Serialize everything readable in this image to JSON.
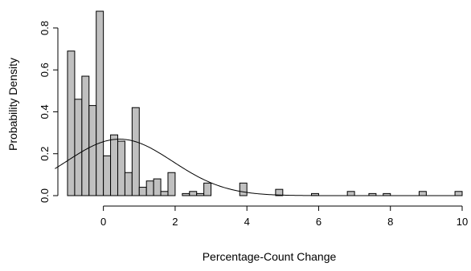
{
  "chart_data": {
    "type": "bar",
    "subtype": "histogram-with-density-curve",
    "title": "",
    "xlabel": "Percentage-Count Change",
    "ylabel": "Probability Density",
    "xlim": [
      -1,
      10
    ],
    "ylim": [
      0,
      0.88
    ],
    "x_ticks": [
      0,
      2,
      4,
      6,
      8,
      10
    ],
    "y_ticks": [
      0.0,
      0.2,
      0.4,
      0.6,
      0.8
    ],
    "x_tick_labels": [
      "0",
      "2",
      "4",
      "6",
      "8",
      "10"
    ],
    "y_tick_labels": [
      "0.0",
      "0.2",
      "0.4",
      "0.6",
      "0.8"
    ],
    "bin_width": 0.2,
    "bar_color": "#c0c0c0",
    "bins": [
      {
        "x0": -1.0,
        "x1": -0.8,
        "value": 0.69
      },
      {
        "x0": -0.8,
        "x1": -0.6,
        "value": 0.46
      },
      {
        "x0": -0.6,
        "x1": -0.4,
        "value": 0.57
      },
      {
        "x0": -0.4,
        "x1": -0.2,
        "value": 0.43
      },
      {
        "x0": -0.2,
        "x1": 0.0,
        "value": 0.88
      },
      {
        "x0": 0.0,
        "x1": 0.2,
        "value": 0.19
      },
      {
        "x0": 0.2,
        "x1": 0.4,
        "value": 0.29
      },
      {
        "x0": 0.4,
        "x1": 0.6,
        "value": 0.26
      },
      {
        "x0": 0.6,
        "x1": 0.8,
        "value": 0.11
      },
      {
        "x0": 0.8,
        "x1": 1.0,
        "value": 0.42
      },
      {
        "x0": 1.0,
        "x1": 1.2,
        "value": 0.04
      },
      {
        "x0": 1.2,
        "x1": 1.4,
        "value": 0.07
      },
      {
        "x0": 1.4,
        "x1": 1.6,
        "value": 0.08
      },
      {
        "x0": 1.6,
        "x1": 1.8,
        "value": 0.02
      },
      {
        "x0": 1.8,
        "x1": 2.0,
        "value": 0.11
      },
      {
        "x0": 2.2,
        "x1": 2.4,
        "value": 0.01
      },
      {
        "x0": 2.4,
        "x1": 2.6,
        "value": 0.02
      },
      {
        "x0": 2.6,
        "x1": 2.8,
        "value": 0.01
      },
      {
        "x0": 2.8,
        "x1": 3.0,
        "value": 0.06
      },
      {
        "x0": 3.8,
        "x1": 4.0,
        "value": 0.06
      },
      {
        "x0": 4.8,
        "x1": 5.0,
        "value": 0.03
      },
      {
        "x0": 5.8,
        "x1": 6.0,
        "value": 0.01
      },
      {
        "x0": 6.8,
        "x1": 7.0,
        "value": 0.02
      },
      {
        "x0": 7.4,
        "x1": 7.6,
        "value": 0.01
      },
      {
        "x0": 7.8,
        "x1": 8.0,
        "value": 0.01
      },
      {
        "x0": 8.8,
        "x1": 9.0,
        "value": 0.02
      },
      {
        "x0": 9.8,
        "x1": 10.0,
        "value": 0.02
      }
    ],
    "density_curve": {
      "type": "normal",
      "mean": 0.45,
      "sd": 1.48
    }
  }
}
